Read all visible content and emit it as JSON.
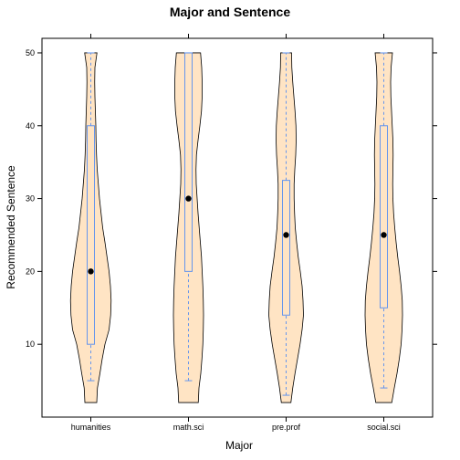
{
  "chart_data": {
    "type": "violin",
    "title": "Major and Sentence",
    "xlabel": "Major",
    "ylabel": "Recommended Sentence",
    "categories": [
      "humanities",
      "math.sci",
      "pre.prof",
      "social.sci"
    ],
    "ylim": [
      0,
      52
    ],
    "yticks": [
      10,
      20,
      30,
      40,
      50
    ],
    "grid": false,
    "legend": "none",
    "colors": {
      "violin_fill": "#FFE4C4",
      "violin_stroke": "#000000",
      "box_stroke": "#6495ED",
      "median_dot": "#000000"
    },
    "boxes": [
      {
        "category": "humanities",
        "whisker_low": 5,
        "q1": 10,
        "median": 20,
        "q3": 40,
        "whisker_high": 50
      },
      {
        "category": "math.sci",
        "whisker_low": 5,
        "q1": 20,
        "median": 30,
        "q3": 50,
        "whisker_high": 50
      },
      {
        "category": "pre.prof",
        "whisker_low": 3,
        "q1": 14,
        "median": 25,
        "q3": 32.5,
        "whisker_high": 50
      },
      {
        "category": "social.sci",
        "whisker_low": 4,
        "q1": 15,
        "median": 25,
        "q3": 40,
        "whisker_high": 50
      }
    ],
    "density": [
      {
        "category": "humanities",
        "profile": [
          [
            2,
            0.26
          ],
          [
            4,
            0.29
          ],
          [
            6,
            0.4
          ],
          [
            8,
            0.5
          ],
          [
            10,
            0.62
          ],
          [
            12,
            0.8
          ],
          [
            14,
            0.87
          ],
          [
            16,
            0.89
          ],
          [
            18,
            0.86
          ],
          [
            20,
            0.8
          ],
          [
            22,
            0.71
          ],
          [
            24,
            0.62
          ],
          [
            26,
            0.52
          ],
          [
            28,
            0.45
          ],
          [
            30,
            0.38
          ],
          [
            32,
            0.33
          ],
          [
            34,
            0.28
          ],
          [
            36,
            0.25
          ],
          [
            38,
            0.23
          ],
          [
            40,
            0.22
          ],
          [
            42,
            0.2
          ],
          [
            44,
            0.18
          ],
          [
            46,
            0.17
          ],
          [
            48,
            0.18
          ],
          [
            50,
            0.27
          ]
        ]
      },
      {
        "category": "math.sci",
        "profile": [
          [
            2,
            0.43
          ],
          [
            4,
            0.46
          ],
          [
            6,
            0.54
          ],
          [
            8,
            0.59
          ],
          [
            10,
            0.63
          ],
          [
            12,
            0.65
          ],
          [
            14,
            0.66
          ],
          [
            16,
            0.65
          ],
          [
            18,
            0.63
          ],
          [
            20,
            0.6
          ],
          [
            22,
            0.57
          ],
          [
            24,
            0.52
          ],
          [
            26,
            0.47
          ],
          [
            28,
            0.42
          ],
          [
            30,
            0.38
          ],
          [
            32,
            0.34
          ],
          [
            34,
            0.33
          ],
          [
            36,
            0.35
          ],
          [
            38,
            0.42
          ],
          [
            40,
            0.5
          ],
          [
            42,
            0.57
          ],
          [
            44,
            0.6
          ],
          [
            46,
            0.6
          ],
          [
            48,
            0.58
          ],
          [
            50,
            0.53
          ]
        ]
      },
      {
        "category": "pre.prof",
        "profile": [
          [
            2,
            0.21
          ],
          [
            4,
            0.29
          ],
          [
            6,
            0.39
          ],
          [
            8,
            0.5
          ],
          [
            10,
            0.61
          ],
          [
            12,
            0.7
          ],
          [
            14,
            0.76
          ],
          [
            16,
            0.74
          ],
          [
            18,
            0.7
          ],
          [
            20,
            0.62
          ],
          [
            22,
            0.53
          ],
          [
            24,
            0.46
          ],
          [
            26,
            0.4
          ],
          [
            28,
            0.37
          ],
          [
            30,
            0.35
          ],
          [
            32,
            0.35
          ],
          [
            34,
            0.38
          ],
          [
            36,
            0.42
          ],
          [
            38,
            0.44
          ],
          [
            40,
            0.43
          ],
          [
            42,
            0.39
          ],
          [
            44,
            0.34
          ],
          [
            46,
            0.29
          ],
          [
            48,
            0.25
          ],
          [
            50,
            0.24
          ]
        ]
      },
      {
        "category": "social.sci",
        "profile": [
          [
            2,
            0.35
          ],
          [
            4,
            0.46
          ],
          [
            6,
            0.58
          ],
          [
            8,
            0.68
          ],
          [
            10,
            0.76
          ],
          [
            12,
            0.8
          ],
          [
            14,
            0.82
          ],
          [
            16,
            0.81
          ],
          [
            18,
            0.76
          ],
          [
            20,
            0.69
          ],
          [
            22,
            0.61
          ],
          [
            24,
            0.54
          ],
          [
            26,
            0.48
          ],
          [
            28,
            0.43
          ],
          [
            30,
            0.4
          ],
          [
            32,
            0.39
          ],
          [
            34,
            0.4
          ],
          [
            36,
            0.41
          ],
          [
            38,
            0.4
          ],
          [
            40,
            0.37
          ],
          [
            42,
            0.34
          ],
          [
            44,
            0.31
          ],
          [
            46,
            0.3
          ],
          [
            48,
            0.32
          ],
          [
            50,
            0.38
          ]
        ]
      }
    ]
  }
}
